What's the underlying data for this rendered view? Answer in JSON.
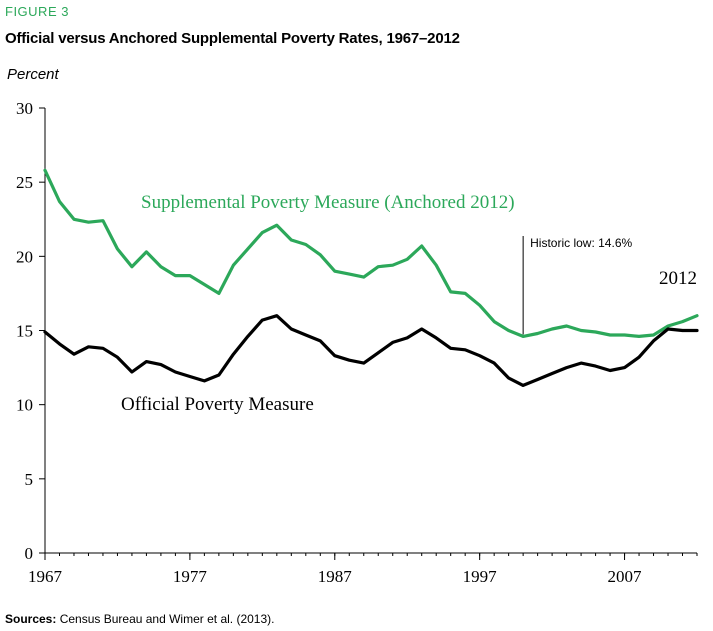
{
  "figure_label": "FIGURE 3",
  "sources": {
    "label": "Sources:",
    "text": "Census Bureau and Wimer et al. (2013)."
  },
  "colors": {
    "figure_label": "#2ca85a",
    "supplemental": "#2ca85a",
    "official": "#000000",
    "axis": "#000000"
  },
  "chart_data": {
    "type": "line",
    "title": "Official versus Anchored Supplemental Poverty Rates, 1967–2012",
    "xlabel": "",
    "ylabel": "Percent",
    "xlim": [
      1967,
      2012
    ],
    "ylim": [
      0,
      30
    ],
    "x_ticks": [
      1967,
      1977,
      1987,
      1997,
      2007
    ],
    "y_ticks": [
      0,
      5,
      10,
      15,
      20,
      25,
      30
    ],
    "grid": false,
    "x": [
      1967,
      1968,
      1969,
      1970,
      1971,
      1972,
      1973,
      1974,
      1975,
      1976,
      1977,
      1978,
      1979,
      1980,
      1981,
      1982,
      1983,
      1984,
      1985,
      1986,
      1987,
      1988,
      1989,
      1990,
      1991,
      1992,
      1993,
      1994,
      1995,
      1996,
      1997,
      1998,
      1999,
      2000,
      2001,
      2002,
      2003,
      2004,
      2005,
      2006,
      2007,
      2008,
      2009,
      2010,
      2011,
      2012
    ],
    "series": [
      {
        "name": "Supplemental Poverty Measure (Anchored 2012)",
        "color": "#2ca85a",
        "values": [
          25.8,
          23.7,
          22.5,
          22.3,
          22.4,
          20.5,
          19.3,
          20.3,
          19.3,
          18.7,
          18.7,
          18.1,
          17.5,
          19.4,
          20.5,
          21.6,
          22.1,
          21.1,
          20.8,
          20.1,
          19.0,
          18.8,
          18.6,
          19.3,
          19.4,
          19.8,
          20.7,
          19.4,
          17.6,
          17.5,
          16.7,
          15.6,
          15.0,
          14.6,
          14.8,
          15.1,
          15.3,
          15.0,
          14.9,
          14.7,
          14.7,
          14.6,
          14.7,
          15.3,
          15.6,
          16.0
        ]
      },
      {
        "name": "Official Poverty Measure",
        "color": "#000000",
        "values": [
          14.9,
          14.1,
          13.4,
          13.9,
          13.8,
          13.2,
          12.2,
          12.9,
          12.7,
          12.2,
          11.9,
          11.6,
          12.0,
          13.4,
          14.6,
          15.7,
          16.0,
          15.1,
          14.7,
          14.3,
          13.3,
          13.0,
          12.8,
          13.5,
          14.2,
          14.5,
          15.1,
          14.5,
          13.8,
          13.7,
          13.3,
          12.8,
          11.8,
          11.3,
          11.7,
          12.1,
          12.5,
          12.8,
          12.6,
          12.3,
          12.5,
          13.2,
          14.3,
          15.1,
          15.0,
          15.0
        ]
      }
    ],
    "annotations": [
      {
        "text": "Historic low: 14.6%",
        "x": 2000,
        "y": 14.6
      },
      {
        "text": "2012",
        "x": 2012,
        "y": 18.5
      }
    ]
  }
}
